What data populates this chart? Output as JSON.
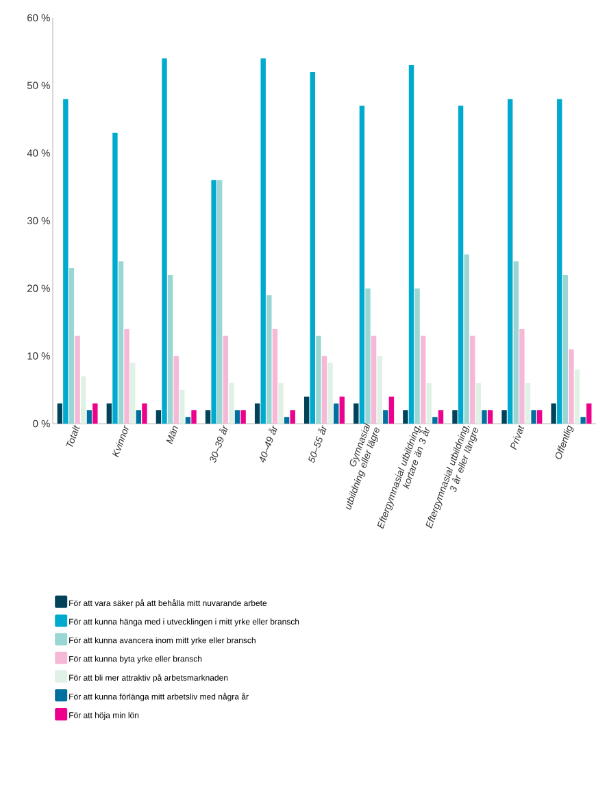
{
  "chart_data": {
    "type": "bar",
    "categories": [
      "Totalt",
      "Kvinnor",
      "Män",
      "30–39 år",
      "40–49 år",
      "50–55 år",
      "Gymnasial utbildning eller lägre",
      "Eftergymnasial utbildning, kortare än 3 år",
      "Eftergymnasial utbildning, 3 år eller längre",
      "Privat",
      "Offentlig"
    ],
    "series": [
      {
        "name": "För att vara säker på att behålla mitt nuvarande arbete",
        "color": "#03435a",
        "values": [
          3,
          3,
          2,
          2,
          3,
          4,
          3,
          2,
          2,
          2,
          3
        ]
      },
      {
        "name": "För att kunna hänga med i utvecklingen i mitt yrke eller bransch",
        "color": "#00aacf",
        "values": [
          48,
          43,
          54,
          36,
          54,
          52,
          47,
          53,
          47,
          48,
          48
        ]
      },
      {
        "name": "För att kunna avancera inom mitt yrke eller bransch",
        "color": "#9ad6d4",
        "values": [
          23,
          24,
          22,
          36,
          19,
          13,
          20,
          20,
          25,
          24,
          22
        ]
      },
      {
        "name": "För att kunna byta yrke eller bransch",
        "color": "#f5b8d6",
        "values": [
          13,
          14,
          10,
          13,
          14,
          10,
          13,
          13,
          13,
          14,
          11
        ]
      },
      {
        "name": "För att bli mer attraktiv på arbetsmarknaden",
        "color": "#e0f1e6",
        "values": [
          7,
          9,
          5,
          6,
          6,
          9,
          10,
          6,
          6,
          6,
          8
        ]
      },
      {
        "name": "För att kunna förlänga mitt arbetsliv med några år",
        "color": "#00709f",
        "values": [
          2,
          2,
          1,
          2,
          1,
          3,
          2,
          1,
          2,
          2,
          1
        ]
      },
      {
        "name": "För att höja min lön",
        "color": "#ec008c",
        "values": [
          3,
          3,
          2,
          2,
          2,
          4,
          4,
          2,
          2,
          2,
          3
        ]
      }
    ],
    "ylim": [
      0,
      60
    ],
    "yticks": [
      {
        "value": 0,
        "label": "0 %"
      },
      {
        "value": 10,
        "label": "10 %"
      },
      {
        "value": 20,
        "label": "20 %"
      },
      {
        "value": 30,
        "label": "30 %"
      },
      {
        "value": 40,
        "label": "40 %"
      },
      {
        "value": 50,
        "label": "50 %"
      },
      {
        "value": 60,
        "label": "60 %"
      }
    ],
    "grid": false,
    "legend": "bottom"
  }
}
